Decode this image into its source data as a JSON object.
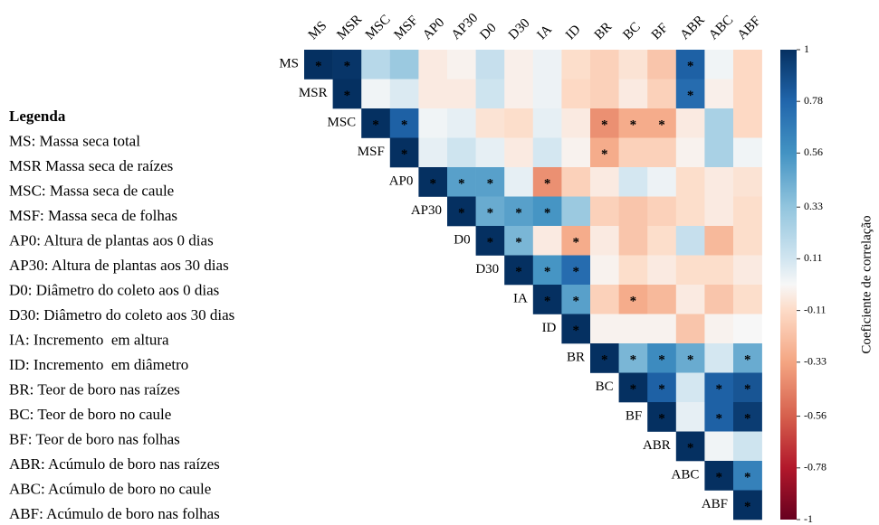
{
  "chart_data": {
    "type": "heatmap",
    "variables": [
      "MS",
      "MSR",
      "MSC",
      "MSF",
      "AP0",
      "AP30",
      "D0",
      "D30",
      "IA",
      "ID",
      "BR",
      "BC",
      "BF",
      "ABR",
      "ABC",
      "ABF"
    ],
    "values": [
      [
        1,
        0.98,
        0.2,
        0.3,
        -0.05,
        -0.02,
        0.15,
        -0.03,
        0.03,
        -0.1,
        -0.15,
        -0.08,
        -0.2,
        0.8,
        0.02,
        -0.12
      ],
      [
        null,
        1,
        0.02,
        0.08,
        -0.05,
        -0.05,
        0.12,
        -0.03,
        0.03,
        -0.12,
        -0.15,
        -0.05,
        -0.15,
        0.75,
        -0.03,
        -0.12
      ],
      [
        null,
        null,
        1,
        0.8,
        0.02,
        0.05,
        -0.08,
        -0.1,
        0.05,
        -0.05,
        -0.4,
        -0.3,
        -0.3,
        -0.05,
        0.25,
        -0.12
      ],
      [
        null,
        null,
        null,
        1,
        0.05,
        0.12,
        0.05,
        -0.05,
        0.1,
        -0.02,
        -0.3,
        -0.15,
        -0.15,
        -0.02,
        0.25,
        0.02
      ],
      [
        null,
        null,
        null,
        null,
        1,
        0.5,
        0.5,
        0.05,
        -0.4,
        -0.15,
        -0.05,
        0.1,
        0.03,
        -0.1,
        -0.05,
        -0.08
      ],
      [
        null,
        null,
        null,
        null,
        null,
        1,
        0.45,
        0.5,
        0.55,
        0.3,
        -0.15,
        -0.2,
        -0.15,
        -0.1,
        -0.05,
        -0.1
      ],
      [
        null,
        null,
        null,
        null,
        null,
        null,
        1,
        0.4,
        -0.05,
        -0.3,
        -0.05,
        -0.2,
        -0.1,
        0.15,
        -0.25,
        -0.1
      ],
      [
        null,
        null,
        null,
        null,
        null,
        null,
        null,
        1,
        0.55,
        0.75,
        -0.02,
        -0.1,
        -0.05,
        -0.1,
        -0.1,
        -0.05
      ],
      [
        null,
        null,
        null,
        null,
        null,
        null,
        null,
        null,
        1,
        0.5,
        -0.15,
        -0.3,
        -0.25,
        -0.05,
        -0.2,
        -0.1
      ],
      [
        null,
        null,
        null,
        null,
        null,
        null,
        null,
        null,
        null,
        1,
        -0.02,
        -0.02,
        -0.02,
        -0.2,
        -0.02,
        0
      ],
      [
        null,
        null,
        null,
        null,
        null,
        null,
        null,
        null,
        null,
        null,
        1,
        0.4,
        0.6,
        0.45,
        0.1,
        0.45
      ],
      [
        null,
        null,
        null,
        null,
        null,
        null,
        null,
        null,
        null,
        null,
        null,
        1,
        0.8,
        0.1,
        0.8,
        0.85
      ],
      [
        null,
        null,
        null,
        null,
        null,
        null,
        null,
        null,
        null,
        null,
        null,
        null,
        1,
        0.05,
        0.8,
        0.95
      ],
      [
        null,
        null,
        null,
        null,
        null,
        null,
        null,
        null,
        null,
        null,
        null,
        null,
        null,
        1,
        0.02,
        0.12
      ],
      [
        null,
        null,
        null,
        null,
        null,
        null,
        null,
        null,
        null,
        null,
        null,
        null,
        null,
        null,
        1,
        0.65
      ],
      [
        null,
        null,
        null,
        null,
        null,
        null,
        null,
        null,
        null,
        null,
        null,
        null,
        null,
        null,
        null,
        1
      ]
    ],
    "significance_mark": "*",
    "significant": [
      [
        true,
        true,
        false,
        false,
        false,
        false,
        false,
        false,
        false,
        false,
        false,
        false,
        false,
        true,
        false,
        false
      ],
      [
        null,
        true,
        false,
        false,
        false,
        false,
        false,
        false,
        false,
        false,
        false,
        false,
        false,
        true,
        false,
        false
      ],
      [
        null,
        null,
        true,
        true,
        false,
        false,
        false,
        false,
        false,
        false,
        true,
        true,
        true,
        false,
        false,
        false
      ],
      [
        null,
        null,
        null,
        true,
        false,
        false,
        false,
        false,
        false,
        false,
        true,
        false,
        false,
        false,
        false,
        false
      ],
      [
        null,
        null,
        null,
        null,
        true,
        true,
        true,
        false,
        true,
        false,
        false,
        false,
        false,
        false,
        false,
        false
      ],
      [
        null,
        null,
        null,
        null,
        null,
        true,
        true,
        true,
        true,
        false,
        false,
        false,
        false,
        false,
        false,
        false
      ],
      [
        null,
        null,
        null,
        null,
        null,
        null,
        true,
        true,
        false,
        true,
        false,
        false,
        false,
        false,
        false,
        false
      ],
      [
        null,
        null,
        null,
        null,
        null,
        null,
        null,
        true,
        true,
        true,
        false,
        false,
        false,
        false,
        false,
        false
      ],
      [
        null,
        null,
        null,
        null,
        null,
        null,
        null,
        null,
        true,
        true,
        false,
        true,
        false,
        false,
        false,
        false
      ],
      [
        null,
        null,
        null,
        null,
        null,
        null,
        null,
        null,
        null,
        true,
        false,
        false,
        false,
        false,
        false,
        false
      ],
      [
        null,
        null,
        null,
        null,
        null,
        null,
        null,
        null,
        null,
        null,
        true,
        true,
        true,
        true,
        false,
        true
      ],
      [
        null,
        null,
        null,
        null,
        null,
        null,
        null,
        null,
        null,
        null,
        null,
        true,
        true,
        false,
        true,
        true
      ],
      [
        null,
        null,
        null,
        null,
        null,
        null,
        null,
        null,
        null,
        null,
        null,
        null,
        true,
        false,
        true,
        true
      ],
      [
        null,
        null,
        null,
        null,
        null,
        null,
        null,
        null,
        null,
        null,
        null,
        null,
        null,
        true,
        false,
        false
      ],
      [
        null,
        null,
        null,
        null,
        null,
        null,
        null,
        null,
        null,
        null,
        null,
        null,
        null,
        null,
        true,
        true
      ],
      [
        null,
        null,
        null,
        null,
        null,
        null,
        null,
        null,
        null,
        null,
        null,
        null,
        null,
        null,
        null,
        true
      ]
    ],
    "colorscale": [
      [
        -1,
        "#67001f"
      ],
      [
        -0.78,
        "#b2182b"
      ],
      [
        -0.56,
        "#d6604d"
      ],
      [
        -0.33,
        "#f4a582"
      ],
      [
        -0.11,
        "#fddbc7"
      ],
      [
        0,
        "#f7f7f7"
      ],
      [
        0.11,
        "#d1e5f0"
      ],
      [
        0.33,
        "#92c5de"
      ],
      [
        0.56,
        "#4393c3"
      ],
      [
        0.78,
        "#2166ac"
      ],
      [
        1,
        "#053061"
      ]
    ],
    "clim": [
      -1,
      1
    ],
    "cticks": [
      1,
      0.78,
      0.56,
      0.33,
      0.11,
      -0.11,
      -0.33,
      -0.56,
      -0.78,
      -1
    ],
    "colorbar_label": "Coeficiente de correlação",
    "legend_title": "Legenda",
    "legend_items": [
      "MS: Massa seca total",
      "MSR Massa seca de raízes",
      "MSC: Massa seca de caule",
      "MSF: Massa seca de folhas",
      "AP0: Altura de plantas aos 0 dias",
      "AP30: Altura de plantas aos 30 dias",
      "D0: Diâmetro do coleto aos 0 dias",
      "D30: Diâmetro do coleto aos 30 dias",
      "IA: Incremento  em altura",
      "ID: Incremento  em diâmetro",
      "BR: Teor de boro nas raízes",
      "BC: Teor de boro no caule",
      "BF: Teor de boro nas folhas",
      "ABR: Acúmulo de boro nas raízes",
      "ABC: Acúmulo de boro no caule",
      "ABF: Acúmulo de boro nas folhas"
    ]
  }
}
